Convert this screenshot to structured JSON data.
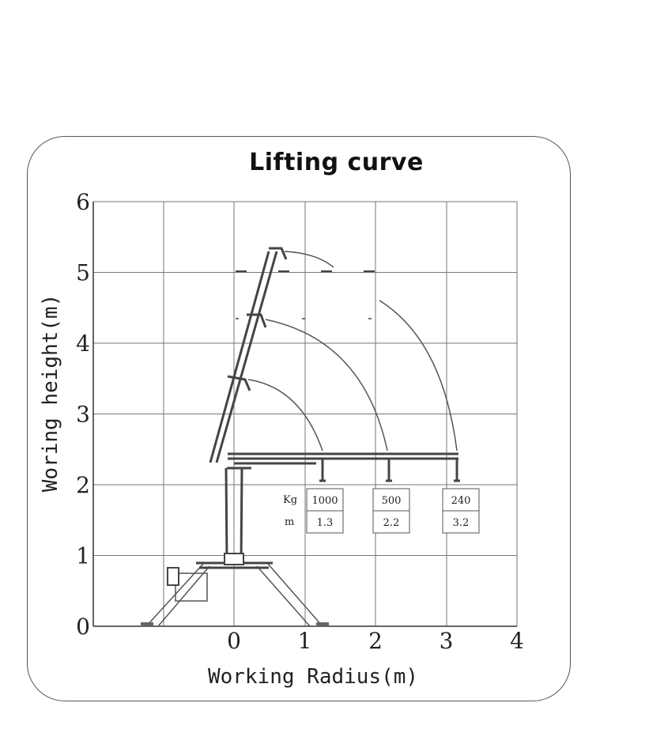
{
  "title": "Lifting  curve",
  "x_axis": {
    "label": "Working Radius(m)",
    "ticks": [
      "0",
      "1",
      "2",
      "3",
      "4"
    ]
  },
  "y_axis": {
    "label": "Woring height(m)",
    "ticks": [
      "0",
      "1",
      "2",
      "3",
      "4",
      "5",
      "6"
    ]
  },
  "load_table": {
    "row_labels": [
      "Kg",
      "m"
    ],
    "columns": [
      {
        "load": "1000",
        "radius": "1.3"
      },
      {
        "load": "500",
        "radius": "2.2"
      },
      {
        "load": "240",
        "radius": "3.2"
      }
    ]
  },
  "chart_data": {
    "type": "table",
    "title": "Lifting  curve",
    "xlabel": "Working Radius(m)",
    "ylabel": "Woring height(m)",
    "xlim": [
      -2,
      4
    ],
    "ylim": [
      0,
      6
    ],
    "grid": true,
    "series": [
      {
        "name": "Kg",
        "values": [
          1000,
          500,
          240
        ]
      },
      {
        "name": "m",
        "values": [
          1.3,
          2.2,
          3.2
        ]
      }
    ]
  }
}
